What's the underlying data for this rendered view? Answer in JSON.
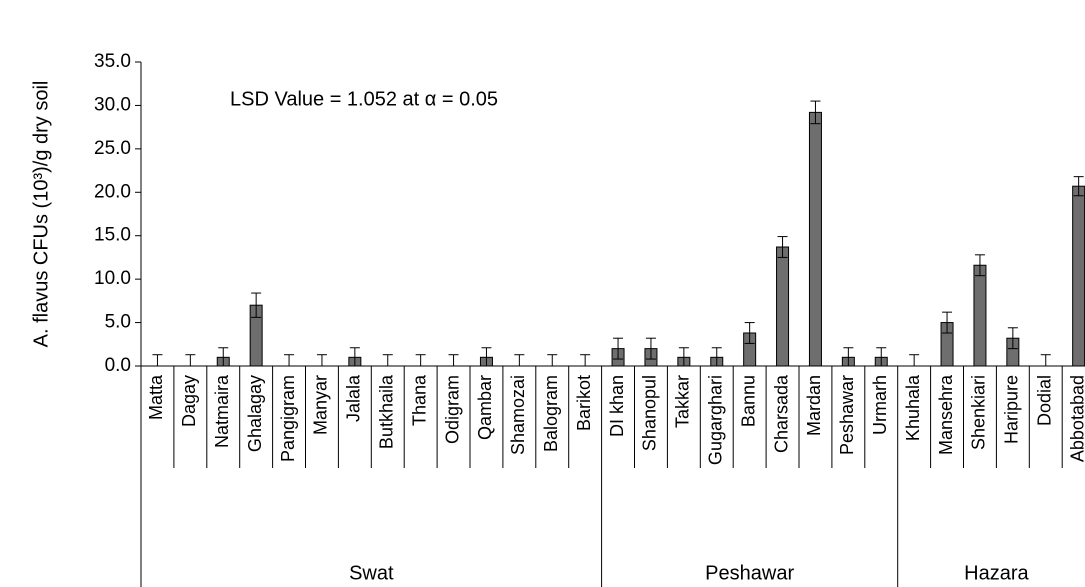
{
  "chart_data": {
    "type": "bar",
    "y_label": "A. flavus CFUs (10³)/g dry soil",
    "annotation": "LSD Value = 1.052 at α = 0.05",
    "color": "#6e6e6e",
    "ylim": [
      0,
      35
    ],
    "yticks": [
      {
        "value": 0,
        "label": "0.0"
      },
      {
        "value": 5,
        "label": "5.0"
      },
      {
        "value": 10,
        "label": "10.0"
      },
      {
        "value": 15,
        "label": "15.0"
      },
      {
        "value": 20,
        "label": "20.0"
      },
      {
        "value": 25,
        "label": "25.0"
      },
      {
        "value": 30,
        "label": "30.0"
      },
      {
        "value": 35,
        "label": "35.0"
      }
    ],
    "groups": [
      {
        "name": "Swat",
        "categories": [
          "Matta",
          "Dagay",
          "Natmaira",
          "Ghalagay",
          "Pangigram",
          "Manyar",
          "Jalala",
          "Butkhaila",
          "Thana",
          "Odigram",
          "Qambar",
          "Shamozai",
          "Balogram",
          "Barikot"
        ],
        "values": [
          0,
          0,
          1,
          7,
          0,
          0,
          1,
          0,
          0,
          0,
          1,
          0,
          0,
          0
        ],
        "errors": [
          1.3,
          1.3,
          1.1,
          1.4,
          1.3,
          1.3,
          1.1,
          1.3,
          1.3,
          1.3,
          1.1,
          1.3,
          1.3,
          1.3
        ]
      },
      {
        "name": "Peshawar",
        "categories": [
          "DI khan",
          "Shanopul",
          "Takkar",
          "Gugarghari",
          "Bannu",
          "Charsada",
          "Mardan",
          "Peshawar",
          "Urmarh"
        ],
        "values": [
          2,
          2,
          1,
          1,
          3.8,
          13.7,
          29.2,
          1,
          1
        ],
        "errors": [
          1.2,
          1.2,
          1.1,
          1.1,
          1.2,
          1.2,
          1.3,
          1.1,
          1.1
        ]
      },
      {
        "name": "Hazara",
        "categories": [
          "Khuhala",
          "Mansehra",
          "Shenkiari",
          "Haripure",
          "Dodial",
          "Abbotabad"
        ],
        "values": [
          0,
          5,
          11.6,
          3.2,
          0,
          20.7
        ],
        "errors": [
          1.3,
          1.2,
          1.2,
          1.2,
          1.3,
          1.1
        ]
      }
    ]
  }
}
